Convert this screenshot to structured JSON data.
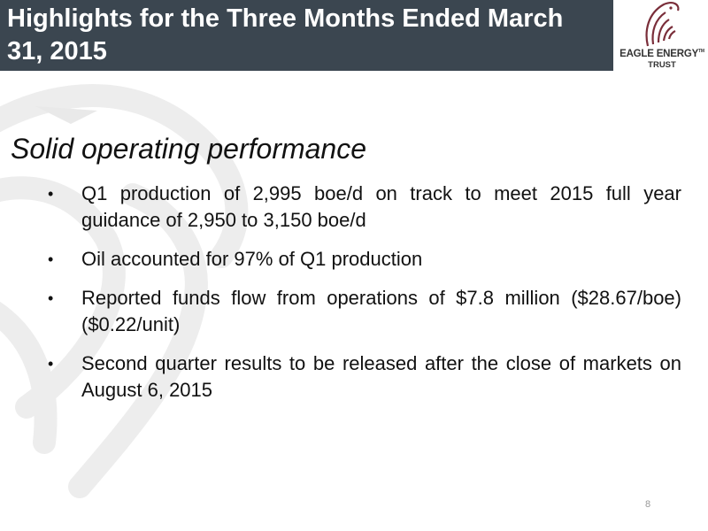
{
  "header": {
    "title": "Highlights for the Three Months Ended March 31, 2015",
    "logo": {
      "name": "EAGLE ENERGY",
      "mark": "TM",
      "subname": "TRUST"
    }
  },
  "subtitle": "Solid operating performance",
  "bullets": [
    "Q1 production of 2,995 boe/d on track to meet 2015 full year guidance of 2,950 to 3,150 boe/d",
    "Oil accounted for 97% of Q1 production",
    "Reported funds flow from operations of $7.8 million ($28.67/boe) ($0.22/unit)",
    "Second quarter results to be released after the close of markets on August 6, 2015"
  ],
  "page_number": 8
}
